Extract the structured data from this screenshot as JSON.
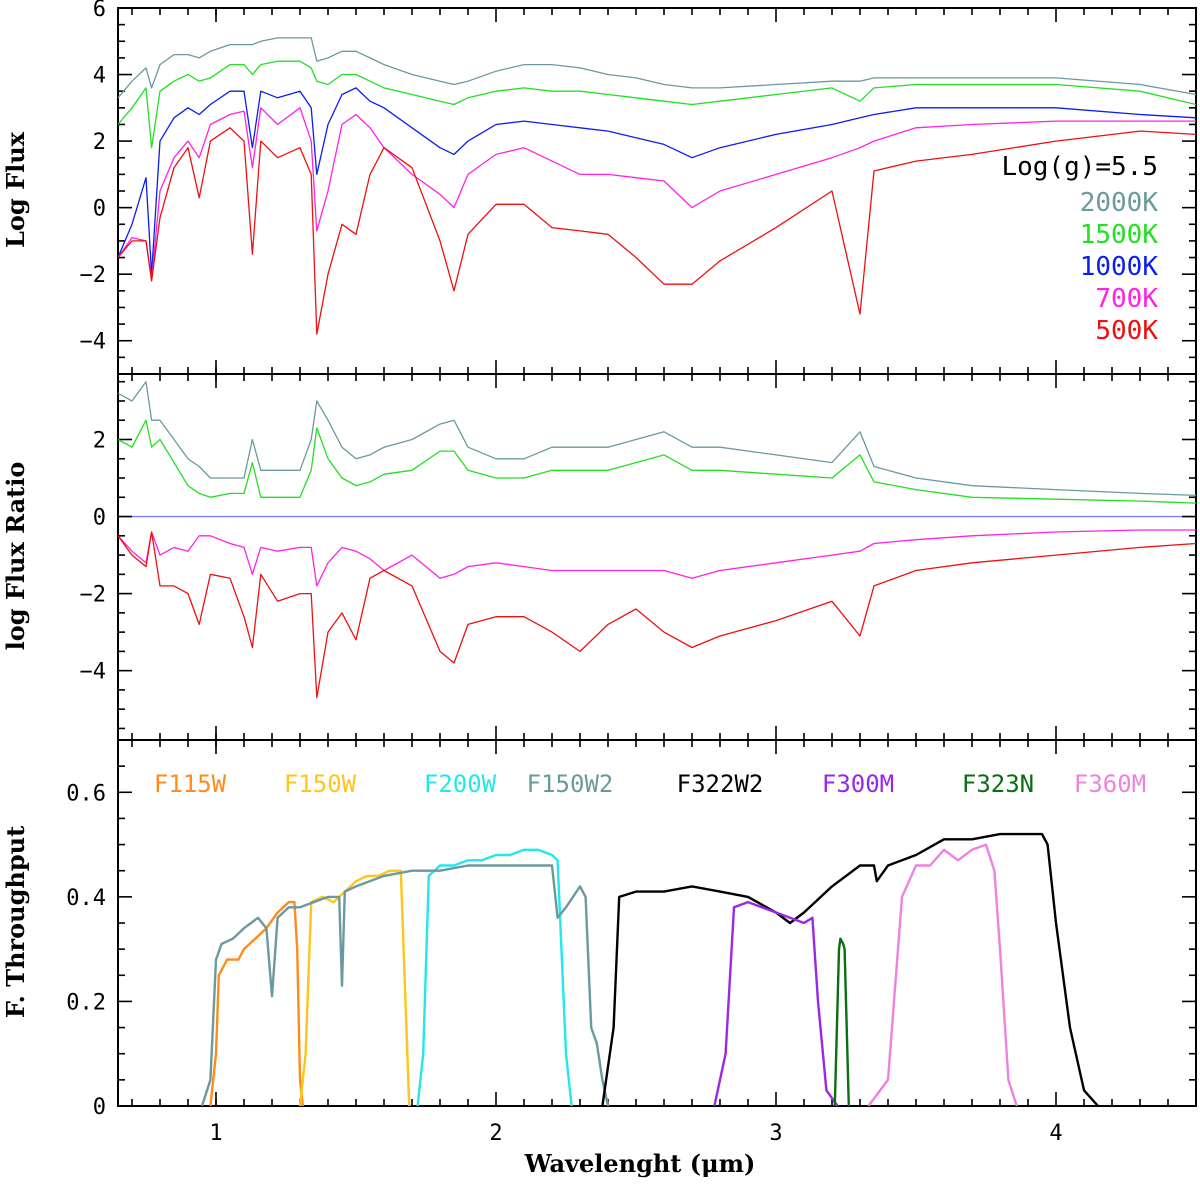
{
  "chart_data": [
    {
      "type": "line",
      "panel": "top",
      "ylabel": "Log Flux",
      "xlim": [
        0.65,
        4.5
      ],
      "ylim": [
        -5,
        6
      ],
      "yticks": [
        -4,
        -2,
        0,
        2,
        4,
        6
      ],
      "legend_title": "Log(g)=5.5",
      "legend_position": "right",
      "x": [
        0.65,
        0.7,
        0.75,
        0.77,
        0.8,
        0.85,
        0.9,
        0.94,
        0.98,
        1.05,
        1.1,
        1.13,
        1.16,
        1.22,
        1.3,
        1.34,
        1.36,
        1.4,
        1.45,
        1.5,
        1.55,
        1.6,
        1.7,
        1.8,
        1.85,
        1.9,
        2.0,
        2.1,
        2.2,
        2.3,
        2.4,
        2.5,
        2.6,
        2.7,
        2.8,
        3.0,
        3.2,
        3.3,
        3.35,
        3.5,
        3.7,
        4.0,
        4.3,
        4.5
      ],
      "series": [
        {
          "name": "2000K",
          "color": "#6a9a9e",
          "values": [
            3.3,
            3.8,
            4.2,
            3.6,
            4.3,
            4.6,
            4.6,
            4.5,
            4.7,
            4.9,
            4.9,
            4.9,
            5.0,
            5.1,
            5.1,
            5.1,
            4.4,
            4.5,
            4.7,
            4.7,
            4.5,
            4.3,
            4.0,
            3.8,
            3.7,
            3.8,
            4.1,
            4.3,
            4.3,
            4.2,
            4.0,
            3.9,
            3.7,
            3.6,
            3.6,
            3.7,
            3.8,
            3.8,
            3.9,
            3.9,
            3.9,
            3.9,
            3.7,
            3.4
          ]
        },
        {
          "name": "1500K",
          "color": "#22e022",
          "values": [
            2.5,
            3.0,
            3.6,
            1.8,
            3.5,
            3.8,
            4.0,
            3.8,
            3.9,
            4.3,
            4.3,
            4.0,
            4.3,
            4.4,
            4.4,
            4.2,
            3.8,
            3.7,
            4.0,
            4.0,
            3.8,
            3.6,
            3.4,
            3.2,
            3.1,
            3.3,
            3.5,
            3.6,
            3.5,
            3.5,
            3.4,
            3.3,
            3.2,
            3.1,
            3.2,
            3.4,
            3.6,
            3.2,
            3.6,
            3.7,
            3.7,
            3.7,
            3.5,
            3.1
          ]
        },
        {
          "name": "1000K",
          "color": "#0a1eee",
          "values": [
            -1.5,
            -0.5,
            0.9,
            -2.0,
            2.0,
            2.7,
            3.0,
            2.8,
            3.1,
            3.5,
            3.5,
            1.8,
            3.5,
            3.3,
            3.5,
            3.0,
            1.0,
            2.5,
            3.4,
            3.6,
            3.2,
            3.0,
            2.4,
            1.8,
            1.6,
            2.0,
            2.5,
            2.6,
            2.5,
            2.4,
            2.3,
            2.1,
            1.9,
            1.5,
            1.8,
            2.2,
            2.5,
            2.7,
            2.8,
            3.0,
            3.0,
            3.0,
            2.8,
            2.7
          ]
        },
        {
          "name": "700K",
          "color": "#ff22e4",
          "values": [
            -1.5,
            -0.9,
            -1.0,
            -2.2,
            0.5,
            1.5,
            2.0,
            1.5,
            2.5,
            2.8,
            2.9,
            1.2,
            3.0,
            2.5,
            3.0,
            2.0,
            -0.7,
            0.5,
            2.5,
            2.8,
            2.4,
            1.8,
            1.0,
            0.4,
            0.0,
            1.0,
            1.6,
            1.8,
            1.4,
            1.0,
            1.0,
            0.9,
            0.8,
            0.0,
            0.5,
            1.0,
            1.5,
            1.8,
            2.0,
            2.4,
            2.5,
            2.6,
            2.6,
            2.6
          ]
        },
        {
          "name": "500K",
          "color": "#ee1010",
          "values": [
            -1.5,
            -1.0,
            -1.0,
            -2.2,
            -0.3,
            1.2,
            1.8,
            0.3,
            2.0,
            2.4,
            2.0,
            -1.4,
            2.0,
            1.5,
            1.8,
            1.0,
            -3.8,
            -2.0,
            -0.5,
            -0.8,
            1.0,
            1.8,
            1.2,
            -1.0,
            -2.5,
            -0.8,
            0.1,
            0.1,
            -0.6,
            -0.7,
            -0.8,
            -1.5,
            -2.3,
            -2.3,
            -1.6,
            -0.6,
            0.5,
            -3.2,
            1.1,
            1.4,
            1.6,
            2.0,
            2.3,
            2.2
          ]
        }
      ]
    },
    {
      "type": "line",
      "panel": "middle",
      "ylabel": "log Flux Ratio",
      "xlim": [
        0.65,
        4.5
      ],
      "ylim": [
        -5.8,
        3.7
      ],
      "yticks": [
        -4,
        -2,
        0,
        2
      ],
      "x": [
        0.65,
        0.7,
        0.75,
        0.77,
        0.8,
        0.85,
        0.9,
        0.94,
        0.98,
        1.05,
        1.1,
        1.13,
        1.16,
        1.22,
        1.3,
        1.34,
        1.36,
        1.4,
        1.45,
        1.5,
        1.55,
        1.6,
        1.7,
        1.8,
        1.85,
        1.9,
        2.0,
        2.1,
        2.2,
        2.3,
        2.4,
        2.5,
        2.6,
        2.7,
        2.8,
        3.0,
        3.2,
        3.3,
        3.35,
        3.5,
        3.7,
        4.0,
        4.3,
        4.5
      ],
      "series": [
        {
          "name": "2000K",
          "color": "#6a9a9e",
          "values": [
            3.2,
            3.0,
            3.5,
            2.5,
            2.5,
            2.0,
            1.5,
            1.3,
            1.0,
            1.0,
            1.0,
            2.0,
            1.2,
            1.2,
            1.2,
            2.0,
            3.0,
            2.5,
            1.8,
            1.5,
            1.6,
            1.8,
            2.0,
            2.4,
            2.5,
            1.8,
            1.5,
            1.5,
            1.8,
            1.8,
            1.8,
            2.0,
            2.2,
            1.8,
            1.8,
            1.6,
            1.4,
            2.2,
            1.3,
            1.0,
            0.8,
            0.7,
            0.6,
            0.55
          ]
        },
        {
          "name": "1500K",
          "color": "#22e022",
          "values": [
            2.0,
            1.8,
            2.5,
            1.8,
            2.0,
            1.4,
            0.8,
            0.6,
            0.5,
            0.6,
            0.6,
            1.4,
            0.5,
            0.5,
            0.5,
            1.2,
            2.3,
            1.5,
            1.0,
            0.8,
            0.9,
            1.1,
            1.2,
            1.7,
            1.7,
            1.2,
            1.0,
            1.0,
            1.2,
            1.2,
            1.2,
            1.4,
            1.6,
            1.2,
            1.2,
            1.1,
            1.0,
            1.6,
            0.9,
            0.7,
            0.5,
            0.45,
            0.4,
            0.35
          ]
        },
        {
          "name": "700K",
          "color": "#ff22e4",
          "values": [
            -0.5,
            -0.9,
            -1.2,
            -0.4,
            -1.0,
            -0.8,
            -0.9,
            -0.5,
            -0.5,
            -0.7,
            -0.8,
            -1.5,
            -0.8,
            -0.9,
            -0.8,
            -0.8,
            -1.8,
            -1.2,
            -0.8,
            -0.9,
            -1.1,
            -1.4,
            -1.0,
            -1.6,
            -1.5,
            -1.3,
            -1.2,
            -1.3,
            -1.4,
            -1.4,
            -1.4,
            -1.4,
            -1.4,
            -1.6,
            -1.4,
            -1.2,
            -1.0,
            -0.9,
            -0.7,
            -0.6,
            -0.5,
            -0.4,
            -0.35,
            -0.35
          ]
        },
        {
          "name": "500K",
          "color": "#ee1010",
          "values": [
            -0.5,
            -1.0,
            -1.3,
            -0.4,
            -1.8,
            -1.8,
            -2.0,
            -2.8,
            -1.5,
            -1.6,
            -2.6,
            -3.4,
            -1.5,
            -2.2,
            -2.0,
            -2.0,
            -4.7,
            -3.0,
            -2.5,
            -3.2,
            -1.6,
            -1.4,
            -1.8,
            -3.5,
            -3.8,
            -2.8,
            -2.6,
            -2.6,
            -3.0,
            -3.5,
            -2.8,
            -2.4,
            -3.0,
            -3.4,
            -3.1,
            -2.7,
            -2.2,
            -3.1,
            -1.8,
            -1.4,
            -1.2,
            -1.0,
            -0.8,
            -0.7
          ]
        }
      ]
    },
    {
      "type": "line",
      "panel": "bottom",
      "ylabel": "F. Throughput",
      "xlabel": "Wavelenght (μm)",
      "xlim": [
        0.65,
        4.5
      ],
      "ylim": [
        0,
        0.7
      ],
      "yticks": [
        0,
        0.2,
        0.4,
        0.6
      ],
      "xticks": [
        1,
        2,
        3,
        4
      ],
      "series": [
        {
          "name": "F115W",
          "color": "#ff8c1a",
          "x": [
            0.98,
            1.0,
            1.01,
            1.04,
            1.08,
            1.1,
            1.14,
            1.18,
            1.22,
            1.26,
            1.28,
            1.29,
            1.3,
            1.31
          ],
          "values": [
            0,
            0.1,
            0.25,
            0.28,
            0.28,
            0.3,
            0.32,
            0.34,
            0.37,
            0.39,
            0.39,
            0.3,
            0.05,
            0
          ]
        },
        {
          "name": "F150W",
          "color": "#ffc51a",
          "x": [
            1.3,
            1.32,
            1.34,
            1.38,
            1.42,
            1.46,
            1.5,
            1.54,
            1.58,
            1.62,
            1.64,
            1.66,
            1.67,
            1.69
          ],
          "values": [
            0,
            0.1,
            0.39,
            0.4,
            0.39,
            0.41,
            0.43,
            0.44,
            0.44,
            0.45,
            0.45,
            0.45,
            0.3,
            0
          ]
        },
        {
          "name": "F200W",
          "color": "#22e8ee",
          "x": [
            1.72,
            1.74,
            1.76,
            1.8,
            1.85,
            1.9,
            1.95,
            2.0,
            2.05,
            2.1,
            2.15,
            2.2,
            2.22,
            2.25,
            2.27
          ],
          "values": [
            0,
            0.1,
            0.44,
            0.46,
            0.46,
            0.47,
            0.47,
            0.48,
            0.48,
            0.49,
            0.49,
            0.48,
            0.47,
            0.1,
            0
          ]
        },
        {
          "name": "F150W2",
          "color": "#6a9a9e",
          "x": [
            0.95,
            0.98,
            1.0,
            1.02,
            1.06,
            1.1,
            1.15,
            1.18,
            1.2,
            1.22,
            1.26,
            1.3,
            1.4,
            1.44,
            1.45,
            1.46,
            1.5,
            1.6,
            1.7,
            1.8,
            1.9,
            2.0,
            2.1,
            2.2,
            2.22,
            2.25,
            2.3,
            2.32,
            2.34,
            2.36,
            2.38,
            2.4
          ],
          "values": [
            0,
            0.05,
            0.28,
            0.31,
            0.32,
            0.34,
            0.36,
            0.34,
            0.21,
            0.36,
            0.38,
            0.38,
            0.4,
            0.4,
            0.23,
            0.41,
            0.42,
            0.44,
            0.45,
            0.45,
            0.46,
            0.46,
            0.46,
            0.46,
            0.36,
            0.38,
            0.42,
            0.4,
            0.15,
            0.12,
            0.05,
            0
          ]
        },
        {
          "name": "F322W2",
          "color": "#000000",
          "x": [
            2.38,
            2.42,
            2.44,
            2.5,
            2.6,
            2.7,
            2.8,
            2.9,
            3.0,
            3.05,
            3.1,
            3.2,
            3.3,
            3.35,
            3.36,
            3.4,
            3.5,
            3.6,
            3.7,
            3.8,
            3.9,
            3.95,
            3.97,
            4.0,
            4.05,
            4.1,
            4.15
          ],
          "values": [
            0,
            0.15,
            0.4,
            0.41,
            0.41,
            0.42,
            0.41,
            0.4,
            0.37,
            0.35,
            0.37,
            0.42,
            0.46,
            0.46,
            0.43,
            0.46,
            0.48,
            0.51,
            0.51,
            0.52,
            0.52,
            0.52,
            0.5,
            0.35,
            0.15,
            0.03,
            0
          ]
        },
        {
          "name": "F300M",
          "color": "#9b27e6",
          "x": [
            2.78,
            2.82,
            2.85,
            2.9,
            3.0,
            3.05,
            3.1,
            3.13,
            3.15,
            3.18,
            3.22
          ],
          "values": [
            0,
            0.1,
            0.38,
            0.39,
            0.37,
            0.36,
            0.35,
            0.36,
            0.2,
            0.03,
            0
          ]
        },
        {
          "name": "F323N",
          "color": "#0a6e12",
          "x": [
            3.21,
            3.225,
            3.23,
            3.24,
            3.245,
            3.26
          ],
          "values": [
            0,
            0.3,
            0.32,
            0.31,
            0.3,
            0
          ]
        },
        {
          "name": "F360M",
          "color": "#ee82e0",
          "x": [
            3.33,
            3.4,
            3.45,
            3.5,
            3.55,
            3.6,
            3.65,
            3.7,
            3.75,
            3.78,
            3.8,
            3.83,
            3.86
          ],
          "values": [
            0,
            0.05,
            0.4,
            0.46,
            0.46,
            0.49,
            0.47,
            0.49,
            0.5,
            0.45,
            0.3,
            0.05,
            0
          ]
        }
      ]
    }
  ]
}
